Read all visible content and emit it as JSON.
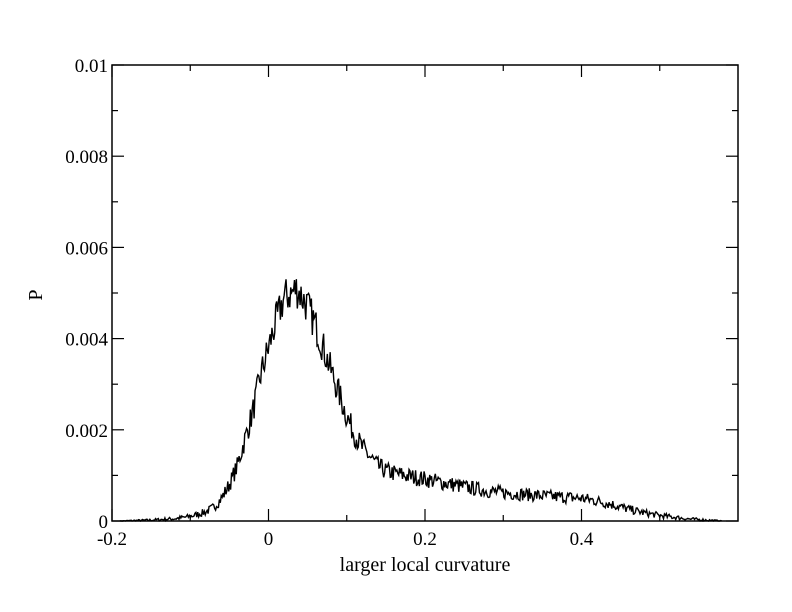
{
  "chart_data": {
    "type": "line",
    "title": "",
    "xlabel": "larger local curvature",
    "ylabel": "P",
    "xlim": [
      -0.2,
      0.6
    ],
    "ylim": [
      0,
      0.01
    ],
    "x_ticks": [
      -0.2,
      0,
      0.2,
      0.4
    ],
    "x_tick_labels": [
      "-0.2",
      "0",
      "0.2",
      "0.4"
    ],
    "y_ticks": [
      0,
      0.002,
      0.004,
      0.006,
      0.008,
      0.01
    ],
    "y_tick_labels": [
      "0",
      "0.002",
      "0.004",
      "0.006",
      "0.008",
      "0.01"
    ],
    "grid": false,
    "legend": "none",
    "line_color": "#000000",
    "series": [
      {
        "x": [
          -0.19,
          -0.15,
          -0.12,
          -0.1,
          -0.08,
          -0.07,
          -0.06,
          -0.05,
          -0.04,
          -0.03,
          -0.02,
          -0.01,
          0.0,
          0.01,
          0.02,
          0.03,
          0.035,
          0.04,
          0.05,
          0.06,
          0.07,
          0.08,
          0.09,
          0.1,
          0.11,
          0.12,
          0.13,
          0.14,
          0.15,
          0.16,
          0.18,
          0.2,
          0.22,
          0.25,
          0.28,
          0.3,
          0.33,
          0.36,
          0.38,
          0.4,
          0.42,
          0.44,
          0.46,
          0.48,
          0.5,
          0.52,
          0.54,
          0.56,
          0.58
        ],
        "y": [
          0.0,
          2e-05,
          5e-05,
          0.0001,
          0.0002,
          0.0003,
          0.0005,
          0.0008,
          0.0012,
          0.0018,
          0.0024,
          0.0032,
          0.0038,
          0.0044,
          0.0049,
          0.005,
          0.0051,
          0.005,
          0.0047,
          0.0043,
          0.0038,
          0.0033,
          0.0028,
          0.0023,
          0.0019,
          0.0016,
          0.0014,
          0.0012,
          0.0011,
          0.00105,
          0.00098,
          0.00092,
          0.00085,
          0.00075,
          0.00066,
          0.00062,
          0.00058,
          0.00054,
          0.00052,
          0.0005,
          0.00044,
          0.00036,
          0.00026,
          0.00018,
          0.00012,
          8e-05,
          4e-05,
          2e-05,
          0.0
        ]
      }
    ]
  }
}
